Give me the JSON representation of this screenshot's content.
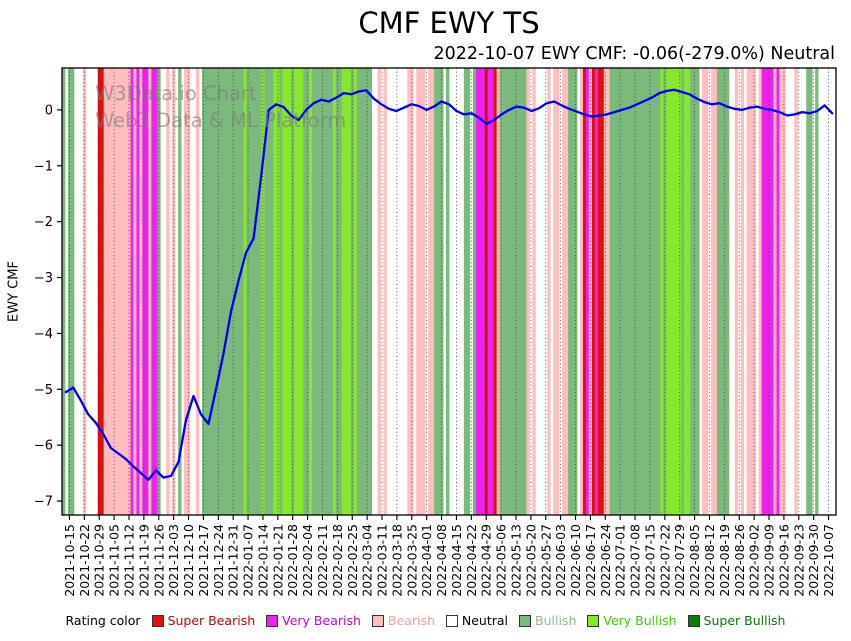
{
  "title": "CMF EWY TS",
  "subtitle": "2022-10-07 EWY CMF: -0.06(-279.0%) Neutral",
  "watermark": {
    "line1": "W3Data.io Chart",
    "line2": "Web3 Data & ML Platform"
  },
  "legend": {
    "label": "Rating color",
    "items": [
      {
        "label": "Super Bearish",
        "swatch": "#dd1111",
        "text": "#cc0000"
      },
      {
        "label": "Very Bearish",
        "swatch": "#ee22ee",
        "text": "#cc00cc"
      },
      {
        "label": "Bearish",
        "swatch": "#ffbdbd",
        "text": "#ff9f9f"
      },
      {
        "label": "Neutral",
        "swatch": "#ffffff",
        "text": "#000000"
      },
      {
        "label": "Bullish",
        "swatch": "#7cb97c",
        "text": "#8fbc8f"
      },
      {
        "label": "Very Bullish",
        "swatch": "#86e82c",
        "text": "#3ecf00"
      },
      {
        "label": "Super Bullish",
        "swatch": "#0a7a0a",
        "text": "#0a7a0a"
      }
    ]
  },
  "chart_data": {
    "type": "line",
    "title": "CMF EWY TS",
    "xlabel": "",
    "ylabel": "EWY CMF",
    "ylim": [
      -7.25,
      0.75
    ],
    "yticks": [
      0,
      -1,
      -2,
      -3,
      -4,
      -5,
      -6,
      -7
    ],
    "ytick_labels": [
      "0",
      "−1",
      "−2",
      "−3",
      "−4",
      "−5",
      "−6",
      "−7"
    ],
    "grid": "vertical-dotted-weekly",
    "legend_position": "bottom",
    "x": [
      "2021-10-15",
      "2021-10-22",
      "2021-10-29",
      "2021-11-05",
      "2021-11-12",
      "2021-11-19",
      "2021-11-26",
      "2021-12-03",
      "2021-12-10",
      "2021-12-17",
      "2021-12-24",
      "2021-12-31",
      "2022-01-07",
      "2022-01-14",
      "2022-01-21",
      "2022-01-28",
      "2022-02-04",
      "2022-02-11",
      "2022-02-18",
      "2022-02-25",
      "2022-03-04",
      "2022-03-11",
      "2022-03-18",
      "2022-03-25",
      "2022-04-01",
      "2022-04-08",
      "2022-04-15",
      "2022-04-22",
      "2022-04-29",
      "2022-05-06",
      "2022-05-13",
      "2022-05-20",
      "2022-05-27",
      "2022-06-03",
      "2022-06-10",
      "2022-06-17",
      "2022-06-24",
      "2022-07-01",
      "2022-07-08",
      "2022-07-15",
      "2022-07-22",
      "2022-07-29",
      "2022-08-05",
      "2022-08-12",
      "2022-08-19",
      "2022-08-26",
      "2022-09-02",
      "2022-09-09",
      "2022-09-16",
      "2022-09-23",
      "2022-09-30",
      "2022-10-07"
    ],
    "last_point": {
      "date": "2022-10-07",
      "value": -0.06,
      "change_pct": -279.0,
      "rating": "Neutral"
    },
    "series": [
      {
        "name": "EWY CMF",
        "color": "#0000ee",
        "values": [
          -5.05,
          -4.97,
          -5.2,
          -5.45,
          -5.6,
          -5.8,
          -6.05,
          -6.15,
          -6.25,
          -6.38,
          -6.5,
          -6.62,
          -6.45,
          -6.58,
          -6.55,
          -6.3,
          -5.55,
          -5.12,
          -5.45,
          -5.62,
          -5.0,
          -4.35,
          -3.6,
          -3.05,
          -2.55,
          -2.3,
          -1.2,
          0.0,
          0.1,
          0.05,
          -0.1,
          -0.18,
          0.0,
          0.12,
          0.18,
          0.15,
          0.22,
          0.3,
          0.28,
          0.33,
          0.35,
          0.2,
          0.1,
          0.02,
          -0.02,
          0.04,
          0.1,
          0.07,
          0.0,
          0.06,
          0.15,
          0.1,
          -0.02,
          -0.08,
          -0.06,
          -0.14,
          -0.25,
          -0.18,
          -0.08,
          0.0,
          0.06,
          0.04,
          -0.02,
          0.03,
          0.12,
          0.15,
          0.08,
          0.02,
          -0.03,
          -0.08,
          -0.12,
          -0.1,
          -0.08,
          -0.04,
          0.0,
          0.04,
          0.1,
          0.16,
          0.22,
          0.3,
          0.34,
          0.36,
          0.32,
          0.28,
          0.2,
          0.14,
          0.1,
          0.12,
          0.06,
          0.02,
          0.0,
          0.04,
          0.06,
          0.02,
          0.0,
          -0.04,
          -0.1,
          -0.08,
          -0.04,
          -0.06,
          -0.02,
          0.08,
          -0.06
        ]
      }
    ],
    "bands": {
      "colors": {
        "r": "#dd1111",
        "m": "#ee22ee",
        "p": "#ffbdbd",
        "n": "#ffffff",
        "g": "#7cb97c",
        "l": "#86e82c",
        "d": "#0a7a0a"
      },
      "ratings": {
        "r": "Super Bearish",
        "m": "Very Bearish",
        "p": "Bearish",
        "n": "Neutral",
        "g": "Bullish",
        "l": "Very Bullish",
        "d": "Super Bullish"
      },
      "weeks": [
        [
          "g",
          "n",
          "g",
          "g",
          "n"
        ],
        [
          "n",
          "n",
          "p",
          "n",
          "n"
        ],
        [
          "n",
          "n",
          "r",
          "r",
          "p"
        ],
        [
          "p",
          "p",
          "p",
          "p",
          "p"
        ],
        [
          "p",
          "p",
          "p",
          "m",
          "p"
        ],
        [
          "m",
          "p",
          "m",
          "m",
          "p"
        ],
        [
          "m",
          "m",
          "g",
          "n",
          "n"
        ],
        [
          "p",
          "n",
          "p",
          "n",
          "g"
        ],
        [
          "n",
          "p",
          "p",
          "n",
          "n"
        ],
        [
          "p",
          "n",
          "g",
          "g",
          "g"
        ],
        [
          "g",
          "g",
          "g",
          "g",
          "g"
        ],
        [
          "g",
          "g",
          "g",
          "g",
          "g"
        ],
        [
          "g",
          "l",
          "g",
          "g",
          "g"
        ],
        [
          "g",
          "g",
          "l",
          "g",
          "g"
        ],
        [
          "g",
          "l",
          "l",
          "g",
          "l"
        ],
        [
          "l",
          "l",
          "g",
          "l",
          "l"
        ],
        [
          "l",
          "g",
          "g",
          "l",
          "g"
        ],
        [
          "g",
          "g",
          "g",
          "g",
          "g"
        ],
        [
          "g",
          "l",
          "g",
          "g",
          "l"
        ],
        [
          "l",
          "l",
          "g",
          "l",
          "g"
        ],
        [
          "g",
          "g",
          "g",
          "g",
          "n"
        ],
        [
          "n",
          "p",
          "n",
          "p",
          "n"
        ],
        [
          "n",
          "n",
          "n",
          "n",
          "n"
        ],
        [
          "n",
          "p",
          "p",
          "n",
          "p"
        ],
        [
          "p",
          "p",
          "n",
          "p",
          "p"
        ],
        [
          "g",
          "g",
          "g",
          "n",
          "g"
        ],
        [
          "n",
          "n",
          "n",
          "n",
          "n"
        ],
        [
          "g",
          "g",
          "n",
          "g",
          "m"
        ],
        [
          "m",
          "m",
          "r",
          "m",
          "m"
        ],
        [
          "r",
          "p",
          "g",
          "g",
          "g"
        ],
        [
          "g",
          "g",
          "g",
          "g",
          "g"
        ],
        [
          "g",
          "p",
          "n",
          "p",
          "n"
        ],
        [
          "n",
          "n",
          "n",
          "p",
          "n"
        ],
        [
          "p",
          "p",
          "n",
          "p",
          "p"
        ],
        [
          "g",
          "g",
          "g",
          "n",
          "p"
        ],
        [
          "r",
          "m",
          "p",
          "r",
          "m"
        ],
        [
          "r",
          "r",
          "p",
          "p",
          "g"
        ],
        [
          "g",
          "g",
          "g",
          "g",
          "g"
        ],
        [
          "g",
          "g",
          "g",
          "g",
          "g"
        ],
        [
          "g",
          "g",
          "g",
          "g",
          "g"
        ],
        [
          "g",
          "l",
          "g",
          "l",
          "l"
        ],
        [
          "l",
          "l",
          "l",
          "g",
          "l"
        ],
        [
          "l",
          "g",
          "g",
          "g",
          "n"
        ],
        [
          "p",
          "p",
          "n",
          "p",
          "p"
        ],
        [
          "g",
          "g",
          "g",
          "g",
          "n"
        ],
        [
          "n",
          "p",
          "n",
          "p",
          "n"
        ],
        [
          "p",
          "p",
          "p",
          "n",
          "p"
        ],
        [
          "m",
          "m",
          "m",
          "m",
          "p"
        ],
        [
          "m",
          "p",
          "p",
          "n",
          "n"
        ],
        [
          "n",
          "p",
          "n",
          "n",
          "n"
        ],
        [
          "g",
          "g",
          "n",
          "g",
          "n"
        ],
        [
          "n"
        ]
      ]
    }
  }
}
